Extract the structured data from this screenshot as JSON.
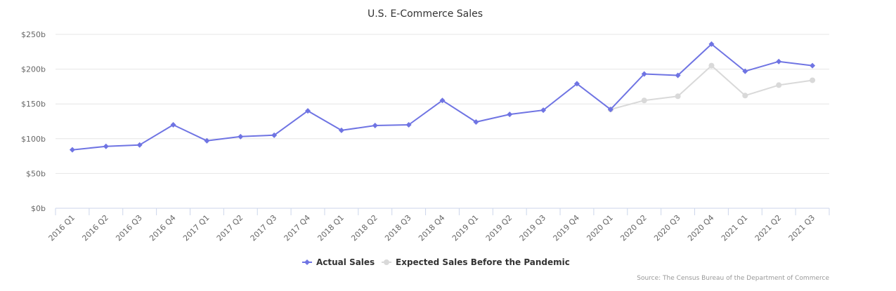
{
  "chart_data": {
    "type": "line",
    "title": "U.S. E-Commerce Sales",
    "categories": [
      "2016 Q1",
      "2016 Q2",
      "2016 Q3",
      "2016 Q4",
      "2017 Q1",
      "2017 Q2",
      "2017 Q3",
      "2017 Q4",
      "2018 Q1",
      "2018 Q2",
      "2018 Q3",
      "2018 Q4",
      "2019 Q1",
      "2019 Q2",
      "2019 Q3",
      "2019 Q4",
      "2020 Q1",
      "2020 Q2",
      "2020 Q3",
      "2020 Q4",
      "2021 Q1",
      "2021 Q2",
      "2021 Q3"
    ],
    "y_ticks": [
      "$0b",
      "$50b",
      "$100b",
      "$150b",
      "$200b",
      "$250b"
    ],
    "ylim": [
      0,
      250
    ],
    "grid": true,
    "legend_position": "bottom-center",
    "series": [
      {
        "name": "Actual Sales",
        "color": "#6f74e3",
        "marker": "diamond",
        "values": [
          84,
          89,
          91,
          120,
          97,
          103,
          105,
          140,
          112,
          119,
          120,
          155,
          124,
          135,
          141,
          179,
          142,
          193,
          191,
          236,
          197,
          211,
          205
        ]
      },
      {
        "name": "Expected Sales Before the Pandemic",
        "color": "#d9d9d9",
        "marker": "circle",
        "values": [
          null,
          null,
          null,
          null,
          null,
          null,
          null,
          null,
          null,
          null,
          null,
          null,
          null,
          null,
          null,
          null,
          142,
          155,
          161,
          205,
          162,
          177,
          184
        ]
      }
    ],
    "source": "Source: The Census Bureau of the Department of Commerce"
  }
}
